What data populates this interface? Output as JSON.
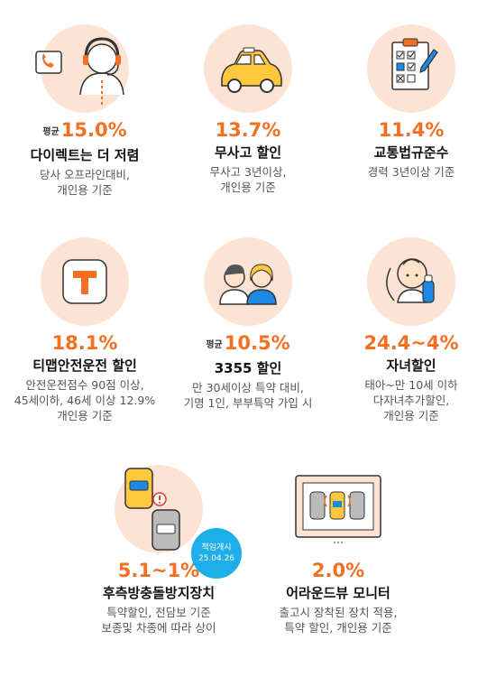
{
  "items": [
    {
      "prefix": "평균",
      "pct": "15.0%",
      "title": "다이렉트는 더 저렴",
      "desc": [
        "당사 오프라인대비,",
        "개인용 기준"
      ],
      "icon": "call-center-icon"
    },
    {
      "prefix": "",
      "pct": "13.7%",
      "title": "무사고 할인",
      "desc": [
        "무사고 3년이상,",
        "개인용 기준"
      ],
      "icon": "car-icon"
    },
    {
      "prefix": "",
      "pct": "11.4%",
      "title": "교통법규준수",
      "desc": [
        "경력 3년이상 기준"
      ],
      "icon": "checklist-icon"
    },
    {
      "prefix": "",
      "pct": "18.1%",
      "title": "티맵안전운전 할인",
      "desc": [
        "안전운전점수 90점 이상,",
        "45세이하, 46세 이상 12.9%",
        "개인용 기준"
      ],
      "icon": "tmap-icon"
    },
    {
      "prefix": "평균",
      "pct": "10.5%",
      "title": "3355 할인",
      "desc": [
        "만 30세이상 특약 대비,",
        "기명 1인, 부부특약 가입 시"
      ],
      "icon": "couple-icon"
    },
    {
      "prefix": "",
      "pct": "24.4~4%",
      "title": "자녀할인",
      "desc": [
        "태아~만 10세 이하",
        "다자녀추가할인,",
        "개인용 기준"
      ],
      "icon": "baby-icon"
    },
    {
      "prefix": "",
      "pct": "5.1~1%",
      "title": "후측방충돌방지장치",
      "desc": [
        "특약할인, 전담보 기준",
        "보종및 차종에 따라 상이"
      ],
      "icon": "collision-warning-icon",
      "badge": [
        "책임개시",
        "25.04.26"
      ]
    },
    {
      "prefix": "",
      "pct": "2.0%",
      "title": "어라운드뷰 모니터",
      "desc": [
        "출고시 장착된 장치 적용,",
        "특약 할인, 개인용 기준"
      ],
      "icon": "around-view-icon"
    }
  ],
  "colors": {
    "accent": "#f36f21",
    "circle": "#fde3d3",
    "badge": "#1eaee9"
  }
}
